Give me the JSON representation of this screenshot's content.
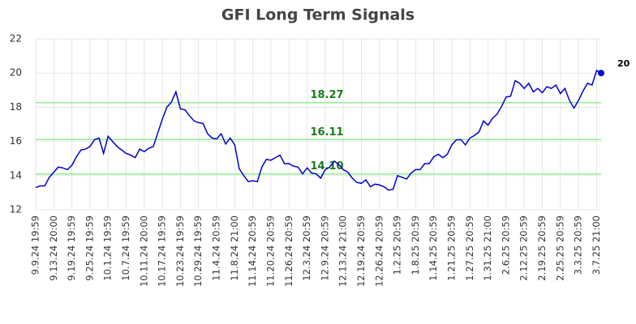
{
  "chart_data": {
    "type": "line",
    "title": "GFI Long Term Signals",
    "categories": [
      "9.9.24 19:59",
      null,
      null,
      null,
      "9.13.24 20:00",
      null,
      null,
      null,
      "9.19.24 19:59",
      null,
      null,
      null,
      "9.25.24 19:59",
      null,
      null,
      null,
      "10.1.24 19:59",
      null,
      null,
      null,
      "10.7.24 19:59",
      null,
      null,
      null,
      "10.11.24 20:00",
      null,
      null,
      null,
      "10.17.24 19:59",
      null,
      null,
      null,
      "10.23.24 19:59",
      null,
      null,
      null,
      "10.29.24 19:59",
      null,
      null,
      null,
      "11.4.24 20:59",
      null,
      null,
      null,
      "11.8.24 21:00",
      null,
      null,
      null,
      "11.14.24 20:59",
      null,
      null,
      null,
      "11.20.24 20:59",
      null,
      null,
      null,
      "11.26.24 20:59",
      null,
      null,
      null,
      "12.3.24 20:59",
      null,
      null,
      null,
      "12.9.24 20:59",
      null,
      null,
      null,
      "12.13.24 21:00",
      null,
      null,
      null,
      "12.19.24 20:59",
      null,
      null,
      null,
      "12.26.24 20:59",
      null,
      null,
      null,
      "1.2.25 20:59",
      null,
      null,
      null,
      "1.8.25 20:59",
      null,
      null,
      null,
      "1.14.25 20:59",
      null,
      null,
      null,
      "1.21.25 20:59",
      null,
      null,
      null,
      "1.27.25 20:59",
      null,
      null,
      null,
      "1.31.25 21:00",
      null,
      null,
      null,
      "2.6.25 20:59",
      null,
      null,
      null,
      "2.12.25 20:59",
      null,
      null,
      null,
      "2.19.25 20:59",
      null,
      null,
      null,
      "2.25.25 20:59",
      null,
      null,
      null,
      "3.3.25 20:59",
      null,
      null,
      null,
      "3.7.25 21:00",
      null
    ],
    "series": [
      {
        "color": "#0000cc",
        "values": [
          13.3,
          13.4,
          13.4,
          13.9,
          14.2,
          14.5,
          14.45,
          14.35,
          14.6,
          15.1,
          15.5,
          15.55,
          15.7,
          16.1,
          16.2,
          15.3,
          16.3,
          16.0,
          15.7,
          15.5,
          15.3,
          15.2,
          15.05,
          15.55,
          15.4,
          15.6,
          15.7,
          16.5,
          17.3,
          18.0,
          18.3,
          18.9,
          17.9,
          17.85,
          17.5,
          17.2,
          17.1,
          17.05,
          16.45,
          16.2,
          16.15,
          16.45,
          15.85,
          16.2,
          15.8,
          14.4,
          14.0,
          13.65,
          13.7,
          13.65,
          14.5,
          14.95,
          14.9,
          15.05,
          15.2,
          14.7,
          14.7,
          14.55,
          14.5,
          14.1,
          14.45,
          14.15,
          14.1,
          13.85,
          14.35,
          14.5,
          14.85,
          14.65,
          14.35,
          14.2,
          13.85,
          13.6,
          13.55,
          13.75,
          13.35,
          13.5,
          13.45,
          13.35,
          13.15,
          13.2,
          14.0,
          13.9,
          13.8,
          14.15,
          14.35,
          14.35,
          14.7,
          14.7,
          15.1,
          15.25,
          15.05,
          15.25,
          15.8,
          16.1,
          16.1,
          15.8,
          16.2,
          16.35,
          16.55,
          17.2,
          16.95,
          17.35,
          17.6,
          18.05,
          18.6,
          18.65,
          19.55,
          19.4,
          19.1,
          19.4,
          18.9,
          19.1,
          18.85,
          19.2,
          19.1,
          19.3,
          18.8,
          19.1,
          18.4,
          17.95,
          18.4,
          18.95,
          19.4,
          19.3,
          20.15,
          20
        ]
      }
    ],
    "hlines": [
      18.27,
      16.11,
      {
        "value": 14.1,
        "label": "14.10"
      }
    ],
    "hline_color": "#90ee90",
    "ylim": [
      12,
      22
    ],
    "yticks": [
      12,
      14,
      16,
      18,
      20,
      22
    ],
    "grid": true
  }
}
